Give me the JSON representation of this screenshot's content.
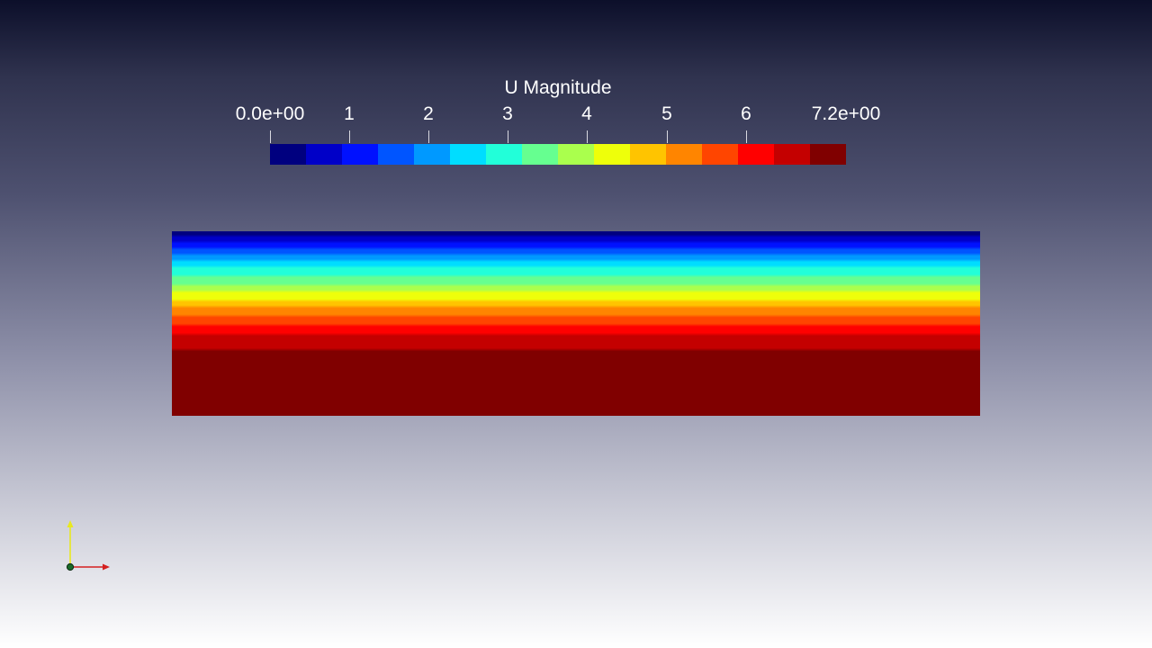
{
  "view": {
    "background_top": "#0c0f2a",
    "background_bottom": "#ffffff"
  },
  "colorbar": {
    "title": "U Magnitude",
    "range": [
      0.0,
      7.2
    ],
    "ticks": [
      {
        "value": 0.0,
        "label": "0.0e+00"
      },
      {
        "value": 1,
        "label": "1"
      },
      {
        "value": 2,
        "label": "2"
      },
      {
        "value": 3,
        "label": "3"
      },
      {
        "value": 4,
        "label": "4"
      },
      {
        "value": 5,
        "label": "5"
      },
      {
        "value": 6,
        "label": "6"
      },
      {
        "value": 7.2,
        "label": "7.2e+00"
      }
    ],
    "colors": [
      "#00007f",
      "#0000c8",
      "#0011ff",
      "#0055ff",
      "#0099ff",
      "#00ddff",
      "#22ffd9",
      "#66ff90",
      "#aaff4d",
      "#eeff0a",
      "#ffc400",
      "#ff8500",
      "#ff4500",
      "#ff0000",
      "#c40000",
      "#800000"
    ]
  },
  "field": {
    "quantity": "U Magnitude",
    "direction": "value increases from top edge to bottom edge",
    "profile": [
      {
        "depth": 0.0,
        "value": 0.0
      },
      {
        "depth": 0.08,
        "value": 1.3
      },
      {
        "depth": 0.18,
        "value": 2.5
      },
      {
        "depth": 0.3,
        "value": 3.7
      },
      {
        "depth": 0.42,
        "value": 5.0
      },
      {
        "depth": 0.55,
        "value": 6.2
      },
      {
        "depth": 0.68,
        "value": 7.0
      },
      {
        "depth": 0.72,
        "value": 7.2
      },
      {
        "depth": 1.0,
        "value": 7.2
      }
    ]
  },
  "orientation_axes": {
    "x_color": "#d42020",
    "y_color": "#e8e820",
    "origin_color": "#1a6a2a"
  }
}
